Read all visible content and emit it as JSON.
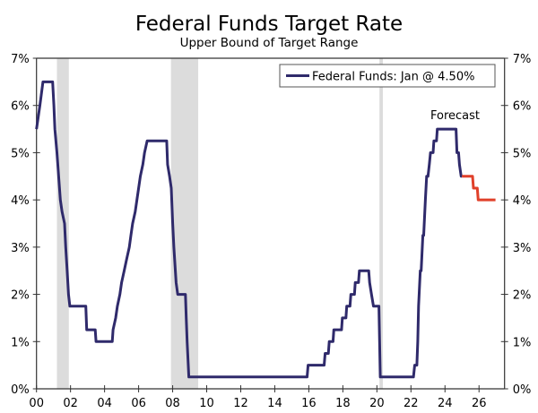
{
  "chart_data": {
    "type": "line",
    "title": "Federal Funds Target Rate",
    "subtitle": "Upper Bound of Target Range",
    "xlabel": "",
    "ylabel": "",
    "xlim": [
      2000,
      2027.5
    ],
    "ylim": [
      0,
      7
    ],
    "x_tick_values": [
      2000,
      2002,
      2004,
      2006,
      2008,
      2010,
      2012,
      2014,
      2016,
      2018,
      2020,
      2022,
      2024,
      2026
    ],
    "x_tick_labels": [
      "00",
      "02",
      "04",
      "06",
      "08",
      "10",
      "12",
      "14",
      "16",
      "18",
      "20",
      "22",
      "24",
      "26"
    ],
    "y_tick_values": [
      0,
      1,
      2,
      3,
      4,
      5,
      6,
      7
    ],
    "y_tick_labels": [
      "0%",
      "1%",
      "2%",
      "3%",
      "4%",
      "5%",
      "6%",
      "7%"
    ],
    "grid": false,
    "legend": {
      "placement": "top-right",
      "label": "Federal Funds: Jan @ 4.50%"
    },
    "annotation": "Forecast",
    "recessions": [
      [
        2001.2,
        2001.9
      ],
      [
        2007.9,
        2009.5
      ],
      [
        2020.15,
        2020.35
      ]
    ],
    "colors": {
      "actual": "#2f2a6b",
      "forecast": "#e0402a",
      "recession": "#dcdcdc"
    },
    "series": [
      {
        "name": "Federal Funds: Jan @ 4.50%",
        "points": [
          [
            2000.0,
            5.5
          ],
          [
            2000.1,
            5.75
          ],
          [
            2000.2,
            6.0
          ],
          [
            2000.38,
            6.5
          ],
          [
            2000.95,
            6.5
          ],
          [
            2001.02,
            6.0
          ],
          [
            2001.08,
            5.5
          ],
          [
            2001.2,
            5.0
          ],
          [
            2001.3,
            4.5
          ],
          [
            2001.4,
            4.0
          ],
          [
            2001.5,
            3.75
          ],
          [
            2001.65,
            3.5
          ],
          [
            2001.72,
            3.0
          ],
          [
            2001.8,
            2.5
          ],
          [
            2001.88,
            2.0
          ],
          [
            2001.96,
            1.75
          ],
          [
            2002.9,
            1.75
          ],
          [
            2002.95,
            1.25
          ],
          [
            2003.45,
            1.25
          ],
          [
            2003.5,
            1.0
          ],
          [
            2004.45,
            1.0
          ],
          [
            2004.5,
            1.25
          ],
          [
            2004.65,
            1.5
          ],
          [
            2004.75,
            1.75
          ],
          [
            2004.9,
            2.0
          ],
          [
            2005.0,
            2.25
          ],
          [
            2005.15,
            2.5
          ],
          [
            2005.3,
            2.75
          ],
          [
            2005.45,
            3.0
          ],
          [
            2005.55,
            3.25
          ],
          [
            2005.65,
            3.5
          ],
          [
            2005.8,
            3.75
          ],
          [
            2005.9,
            4.0
          ],
          [
            2006.0,
            4.25
          ],
          [
            2006.1,
            4.5
          ],
          [
            2006.25,
            4.75
          ],
          [
            2006.35,
            5.0
          ],
          [
            2006.5,
            5.25
          ],
          [
            2007.65,
            5.25
          ],
          [
            2007.7,
            4.75
          ],
          [
            2007.82,
            4.5
          ],
          [
            2007.92,
            4.25
          ],
          [
            2008.0,
            3.5
          ],
          [
            2008.07,
            3.0
          ],
          [
            2008.2,
            2.25
          ],
          [
            2008.3,
            2.0
          ],
          [
            2008.75,
            2.0
          ],
          [
            2008.8,
            1.5
          ],
          [
            2008.85,
            1.0
          ],
          [
            2008.95,
            0.25
          ],
          [
            2015.9,
            0.25
          ],
          [
            2015.96,
            0.5
          ],
          [
            2016.9,
            0.5
          ],
          [
            2016.96,
            0.75
          ],
          [
            2017.15,
            0.75
          ],
          [
            2017.2,
            1.0
          ],
          [
            2017.42,
            1.0
          ],
          [
            2017.47,
            1.25
          ],
          [
            2017.92,
            1.25
          ],
          [
            2017.97,
            1.5
          ],
          [
            2018.18,
            1.5
          ],
          [
            2018.23,
            1.75
          ],
          [
            2018.42,
            1.75
          ],
          [
            2018.47,
            2.0
          ],
          [
            2018.68,
            2.0
          ],
          [
            2018.73,
            2.25
          ],
          [
            2018.92,
            2.25
          ],
          [
            2018.97,
            2.5
          ],
          [
            2019.52,
            2.5
          ],
          [
            2019.57,
            2.25
          ],
          [
            2019.68,
            2.0
          ],
          [
            2019.8,
            1.75
          ],
          [
            2020.12,
            1.75
          ],
          [
            2020.2,
            0.25
          ],
          [
            2022.15,
            0.25
          ],
          [
            2022.22,
            0.5
          ],
          [
            2022.35,
            0.5
          ],
          [
            2022.4,
            1.0
          ],
          [
            2022.45,
            1.75
          ],
          [
            2022.55,
            2.5
          ],
          [
            2022.6,
            2.5
          ],
          [
            2022.7,
            3.25
          ],
          [
            2022.75,
            3.25
          ],
          [
            2022.85,
            4.0
          ],
          [
            2022.92,
            4.5
          ],
          [
            2023.0,
            4.5
          ],
          [
            2023.08,
            4.75
          ],
          [
            2023.15,
            5.0
          ],
          [
            2023.3,
            5.0
          ],
          [
            2023.35,
            5.25
          ],
          [
            2023.5,
            5.25
          ],
          [
            2023.55,
            5.5
          ],
          [
            2024.65,
            5.5
          ],
          [
            2024.7,
            5.0
          ],
          [
            2024.8,
            5.0
          ],
          [
            2024.85,
            4.75
          ],
          [
            2024.95,
            4.5
          ],
          [
            2025.0,
            4.5
          ]
        ]
      },
      {
        "name": "Forecast",
        "points": [
          [
            2025.0,
            4.5
          ],
          [
            2025.62,
            4.5
          ],
          [
            2025.67,
            4.25
          ],
          [
            2025.9,
            4.25
          ],
          [
            2025.95,
            4.0
          ],
          [
            2026.97,
            4.0
          ]
        ]
      }
    ]
  }
}
